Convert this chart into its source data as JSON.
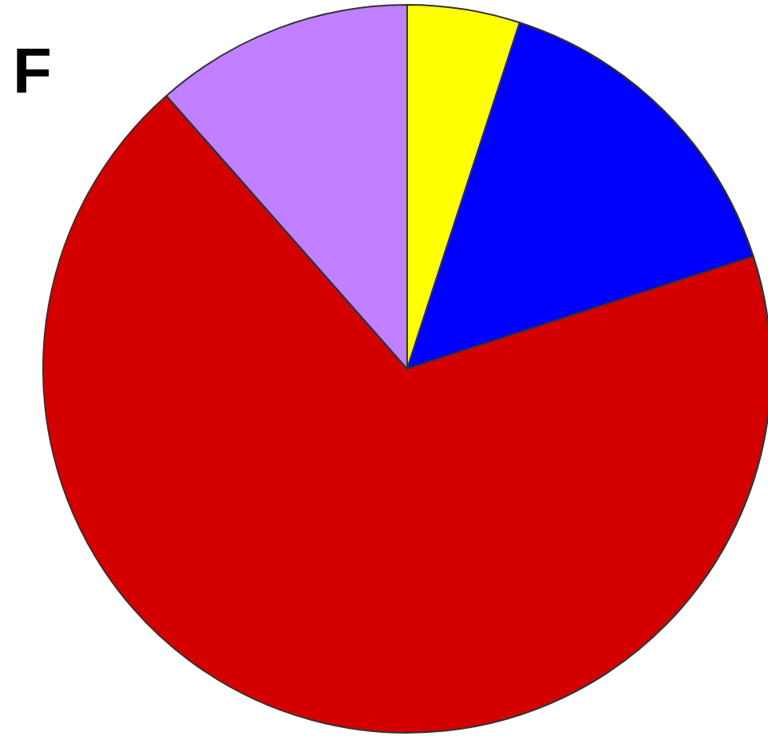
{
  "chart_data": {
    "type": "pie",
    "title": "F",
    "categories": [
      null,
      null,
      null,
      null
    ],
    "values": [
      5,
      15,
      68.5,
      11.5
    ],
    "colors": [
      "#ffff00",
      "#0000ff",
      "#d40000",
      "#c080ff"
    ]
  }
}
